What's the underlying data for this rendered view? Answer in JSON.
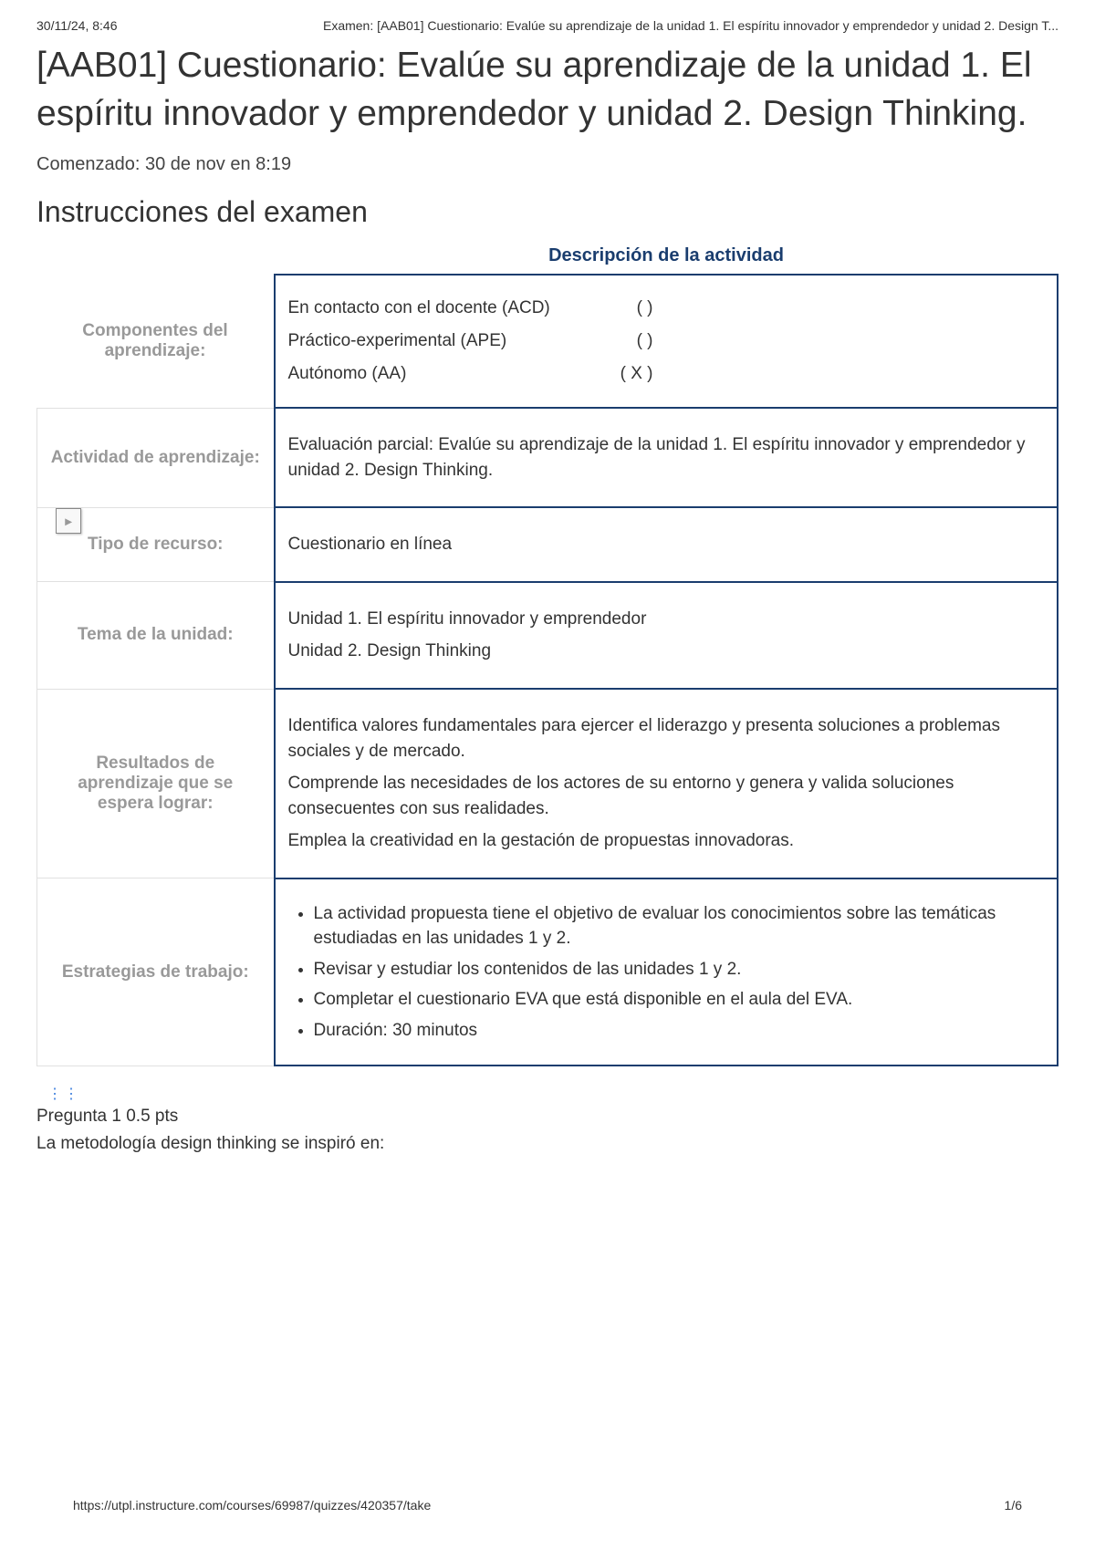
{
  "header": {
    "datetime": "30/11/24, 8:46",
    "pageTitle": "Examen: [AAB01] Cuestionario: Evalúe su aprendizaje de la unidad 1. El espíritu innovador y emprendedor y unidad 2. Design T..."
  },
  "mainTitle": "[AAB01] Cuestionario: Evalúe su aprendizaje de la unidad 1. El espíritu innovador y emprendedor y unidad 2. Design Thinking.",
  "startedText": "Comenzado: 30 de nov en 8:19",
  "instructionsHeading": "Instrucciones del examen",
  "descriptionTitle": "Descripción de la actividad",
  "table": {
    "row1": {
      "label": "Componentes del aprendizaje:",
      "items": [
        {
          "name": "En contacto con el docente (ACD)",
          "mark": "(      )"
        },
        {
          "name": "Práctico-experimental (APE)",
          "mark": "(      )"
        },
        {
          "name": "Autónomo (AA)",
          "mark": "(  X )"
        }
      ]
    },
    "row2": {
      "label": "Actividad de aprendizaje:",
      "content": "Evaluación parcial: Evalúe su aprendizaje de la unidad 1.  El espíritu innovador y emprendedor y unidad 2. Design Thinking."
    },
    "row3": {
      "label": "Tipo de recurso:",
      "content": "Cuestionario en línea",
      "expandIcon": "▸"
    },
    "row4": {
      "label": "Tema de la unidad:",
      "line1": "Unidad 1. El espíritu innovador y emprendedor",
      "line2": "Unidad 2. Design Thinking"
    },
    "row5": {
      "label": "Resultados de aprendizaje que se espera lograr:",
      "p1": "Identifica valores fundamentales para ejercer el liderazgo y presenta soluciones a problemas sociales y de mercado.",
      "p2": "Comprende las necesidades de los actores de su entorno y genera y valida soluciones consecuentes con sus realidades.",
      "p3": "Emplea la creatividad en la gestación de propuestas innovadoras."
    },
    "row6": {
      "label": "Estrategias de trabajo:",
      "bullets": [
        "La actividad propuesta tiene el objetivo de evaluar los conocimientos sobre las temáticas estudiadas en las unidades 1 y 2.",
        "Revisar y estudiar los contenidos de las unidades 1 y 2.",
        "Completar el cuestionario EVA que está disponible en el aula del EVA.",
        "Duración: 30 minutos"
      ]
    }
  },
  "dragHandle": "⋮⋮",
  "question": {
    "header": "Pregunta 1 0.5 pts",
    "text": "La metodología design thinking se inspiró en:"
  },
  "footer": {
    "url": "https://utpl.instructure.com/courses/69987/quizzes/420357/take",
    "page": "1/6"
  },
  "colors": {
    "tableBorder": "#1a3d6e",
    "labelText": "#999999",
    "bodyText": "#333333"
  }
}
